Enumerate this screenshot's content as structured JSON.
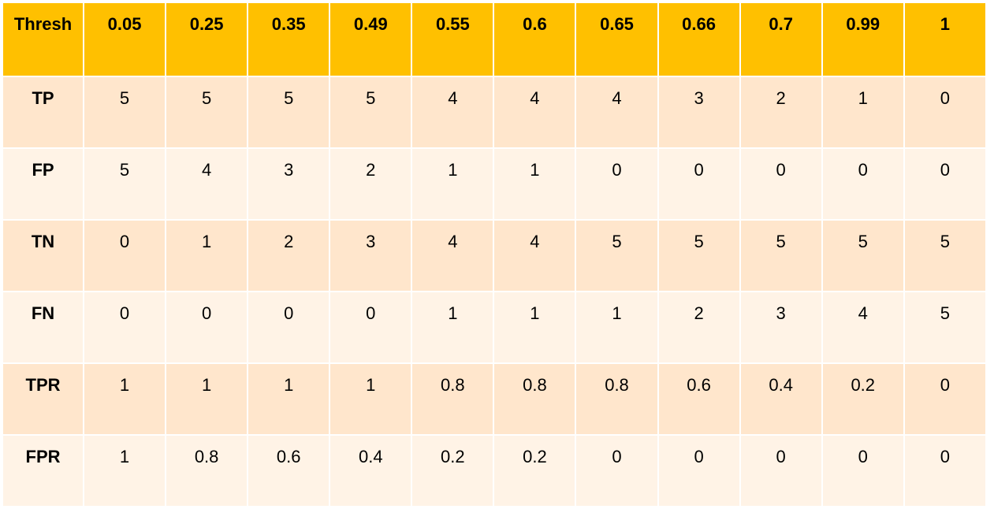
{
  "table": {
    "header": [
      "Thresh",
      "0.05",
      "0.25",
      "0.35",
      "0.49",
      "0.55",
      "0.6",
      "0.65",
      "0.66",
      "0.7",
      "0.99",
      "1"
    ],
    "rows": [
      {
        "label": "TP",
        "values": [
          "5",
          "5",
          "5",
          "5",
          "4",
          "4",
          "4",
          "3",
          "2",
          "1",
          "0"
        ]
      },
      {
        "label": "FP",
        "values": [
          "5",
          "4",
          "3",
          "2",
          "1",
          "1",
          "0",
          "0",
          "0",
          "0",
          "0"
        ]
      },
      {
        "label": "TN",
        "values": [
          "0",
          "1",
          "2",
          "3",
          "4",
          "4",
          "5",
          "5",
          "5",
          "5",
          "5"
        ]
      },
      {
        "label": "FN",
        "values": [
          "0",
          "0",
          "0",
          "0",
          "1",
          "1",
          "1",
          "2",
          "3",
          "4",
          "5"
        ]
      },
      {
        "label": "TPR",
        "values": [
          "1",
          "1",
          "1",
          "1",
          "0.8",
          "0.8",
          "0.8",
          "0.6",
          "0.4",
          "0.2",
          "0"
        ]
      },
      {
        "label": "FPR",
        "values": [
          "1",
          "0.8",
          "0.6",
          "0.4",
          "0.2",
          "0.2",
          "0",
          "0",
          "0",
          "0",
          "0"
        ]
      }
    ]
  },
  "colors": {
    "header_bg": "#ffc000",
    "row_band_dark": "#ffe6cc",
    "row_band_light": "#fff3e6"
  }
}
